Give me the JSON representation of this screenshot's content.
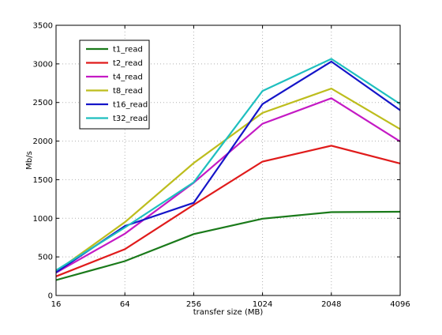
{
  "chart_data": {
    "type": "line",
    "title": "",
    "xlabel": "transfer size (MB)",
    "ylabel": "Mb/s",
    "categories": [
      "16",
      "64",
      "256",
      "1024",
      "2048",
      "4096"
    ],
    "ylim": [
      0,
      3500
    ],
    "yticks": [
      0,
      500,
      1000,
      1500,
      2000,
      2500,
      3000,
      3500
    ],
    "grid": true,
    "legend_position": "top-left",
    "series": [
      {
        "name": "t1_read",
        "color": "#1a7a1a",
        "values": [
          200,
          445,
          795,
          995,
          1080,
          1085
        ]
      },
      {
        "name": "t2_read",
        "color": "#e01b1b",
        "values": [
          248,
          600,
          1175,
          1735,
          1940,
          1710
        ]
      },
      {
        "name": "t4_read",
        "color": "#c41ac4",
        "values": [
          295,
          800,
          1460,
          2225,
          2555,
          1995
        ]
      },
      {
        "name": "t8_read",
        "color": "#bdbd1d",
        "values": [
          310,
          950,
          1715,
          2365,
          2680,
          2155
        ]
      },
      {
        "name": "t16_read",
        "color": "#1515c8",
        "values": [
          300,
          900,
          1200,
          2480,
          3030,
          2400
        ]
      },
      {
        "name": "t32_read",
        "color": "#1fbfbf",
        "values": [
          325,
          880,
          1465,
          2650,
          3065,
          2480
        ]
      }
    ]
  }
}
